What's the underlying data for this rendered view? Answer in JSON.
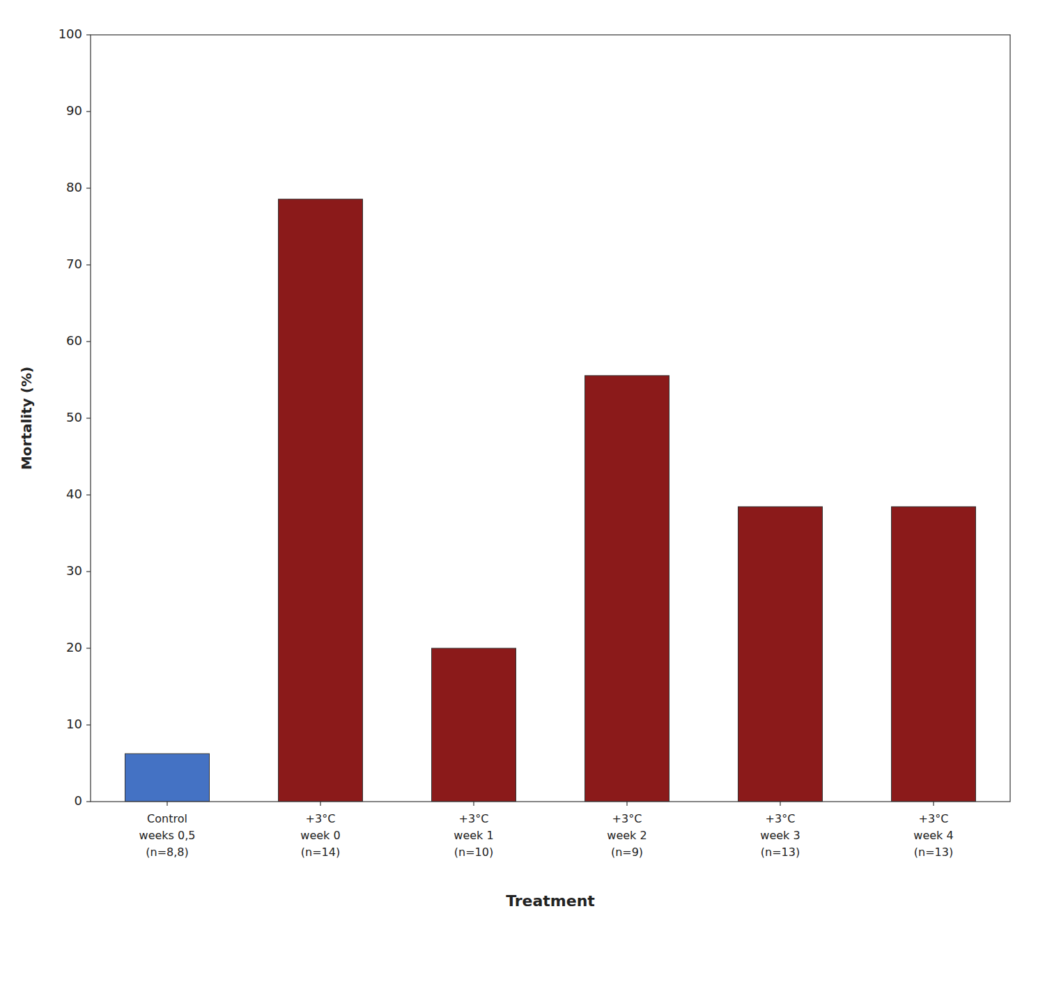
{
  "chart_data": {
    "type": "bar",
    "categories": [
      "Control\nweeks 0,5\n(n=8,8)",
      "+3°C\nweek 0\n(n=14)",
      "+3°C\nweek 1\n(n=10)",
      "+3°C\nweek 2\n(n=9)",
      "+3°C\nweek 3\n(n=13)",
      "+3°C\nweek 4\n(n=13)"
    ],
    "values": [
      6.25,
      78.57,
      20.0,
      55.56,
      38.46,
      38.46
    ],
    "colors": [
      "#4472C4",
      "#8B1A1A",
      "#8B1A1A",
      "#8B1A1A",
      "#8B1A1A",
      "#8B1A1A"
    ],
    "xlabel": "Treatment",
    "ylabel": "Mortality (%)",
    "ylim": [
      0,
      100
    ],
    "yticks": [
      0,
      10,
      20,
      30,
      40,
      50,
      60,
      70,
      80,
      90,
      100
    ],
    "grid": false
  }
}
